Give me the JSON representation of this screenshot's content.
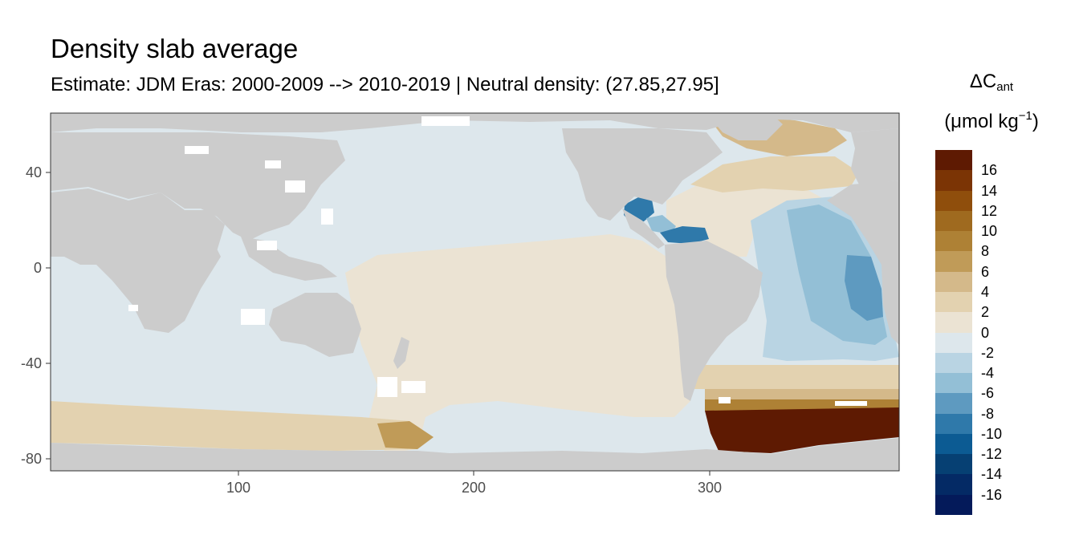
{
  "title": "Density slab average",
  "subtitle": "Estimate: JDM Eras: 2000-2009 --> 2010-2019 | Neutral density: (27.85,27.95]",
  "legend": {
    "symbol": "ΔC",
    "symbol_sub": "ant",
    "unit_prefix": "(μmol kg",
    "unit_sup": "−1",
    "unit_suffix": ")",
    "bins": [
      {
        "label": "16",
        "color": "#5e1a02"
      },
      {
        "label": "14",
        "color": "#7b3405"
      },
      {
        "label": "12",
        "color": "#8f4e0c"
      },
      {
        "label": "10",
        "color": "#9f6a1f"
      },
      {
        "label": "8",
        "color": "#ae8135"
      },
      {
        "label": "6",
        "color": "#c09b58"
      },
      {
        "label": "4",
        "color": "#d4b98a"
      },
      {
        "label": "2",
        "color": "#e3d2b0"
      },
      {
        "label": "0",
        "color": "#ebe3d3"
      },
      {
        "label": "-2",
        "color": "#dde7ec"
      },
      {
        "label": "-4",
        "color": "#b9d4e3"
      },
      {
        "label": "-6",
        "color": "#93bfd6"
      },
      {
        "label": "-8",
        "color": "#5e9ac0"
      },
      {
        "label": "-10",
        "color": "#2f79aa"
      },
      {
        "label": "-12",
        "color": "#0c5b93"
      },
      {
        "label": "-14",
        "color": "#064073"
      },
      {
        "label": "-16",
        "color": "#042a65"
      },
      {
        "label": "",
        "color": "#041a5a"
      }
    ]
  },
  "map": {
    "x_ticks": [
      100,
      200,
      300
    ],
    "y_ticks": [
      40,
      0,
      -40,
      -80
    ],
    "xlim": [
      20,
      380
    ],
    "ylim": [
      -85,
      65
    ],
    "land_color": "#cccccc",
    "frame_color": "#333333"
  }
}
